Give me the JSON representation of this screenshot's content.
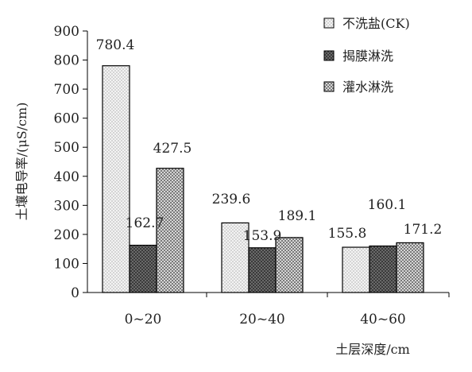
{
  "chart_data": {
    "type": "bar",
    "categories": [
      "0~20",
      "20~40",
      "40~60"
    ],
    "series": [
      {
        "name": "不洗盐(CK)",
        "values": [
          780.4,
          239.6,
          155.8
        ],
        "pattern": "dots"
      },
      {
        "name": "揭膜淋洗",
        "values": [
          162.7,
          153.9,
          160.1
        ],
        "pattern": "dark"
      },
      {
        "name": "灌水淋洗",
        "values": [
          427.5,
          189.1,
          171.2
        ],
        "pattern": "checker"
      }
    ],
    "data_labels": [
      [
        "780.4",
        "239.6",
        "155.8"
      ],
      [
        "162.7",
        "153.9",
        "160.1"
      ],
      [
        "427.5",
        "189.1",
        "171.2"
      ]
    ],
    "xlabel": "土层深度/cm",
    "ylabel": "土壤电导率/(μS/cm)",
    "ylim": [
      0,
      900
    ],
    "yticks": [
      "0",
      "100",
      "200",
      "300",
      "400",
      "500",
      "600",
      "700",
      "800",
      "900"
    ],
    "grid": false,
    "legend_position": "top-right"
  }
}
